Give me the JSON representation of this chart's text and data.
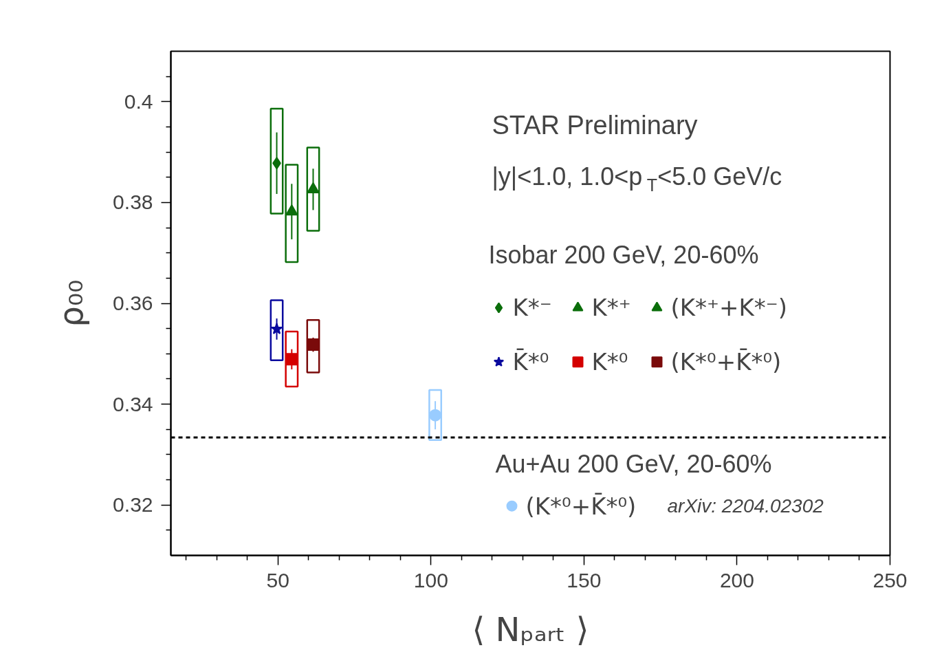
{
  "chart_data": {
    "type": "scatter",
    "xlabel": "⟨ Nₚₐᵣₜ ⟩",
    "ylabel": "ρ₀₀",
    "xlim": [
      15,
      250
    ],
    "ylim": [
      0.31,
      0.41
    ],
    "xticks": [
      {
        "value": 20,
        "label": null
      },
      {
        "value": 30,
        "label": null
      },
      {
        "value": 40,
        "label": null
      },
      50,
      {
        "value": 60,
        "label": null
      },
      {
        "value": 70,
        "label": null
      },
      {
        "value": 80,
        "label": null
      },
      {
        "value": 90,
        "label": null
      },
      100,
      {
        "value": 110,
        "label": null
      },
      {
        "value": 120,
        "label": null
      },
      {
        "value": 130,
        "label": null
      },
      {
        "value": 140,
        "label": null
      },
      150,
      {
        "value": 160,
        "label": null
      },
      {
        "value": 170,
        "label": null
      },
      {
        "value": 180,
        "label": null
      },
      {
        "value": 190,
        "label": null
      },
      200,
      {
        "value": 210,
        "label": null
      },
      {
        "value": 220,
        "label": null
      },
      {
        "value": 230,
        "label": null
      },
      {
        "value": 240,
        "label": null
      },
      250
    ],
    "yticks": [
      {
        "value": 0.315,
        "label": null
      },
      0.32,
      {
        "value": 0.325,
        "label": null
      },
      {
        "value": 0.33,
        "label": null
      },
      {
        "value": 0.335,
        "label": null
      },
      0.34,
      {
        "value": 0.345,
        "label": null
      },
      {
        "value": 0.35,
        "label": null
      },
      {
        "value": 0.355,
        "label": null
      },
      0.36,
      {
        "value": 0.365,
        "label": null
      },
      {
        "value": 0.37,
        "label": null
      },
      {
        "value": 0.375,
        "label": null
      },
      0.38,
      {
        "value": 0.385,
        "label": null
      },
      {
        "value": 0.39,
        "label": null
      },
      {
        "value": 0.395,
        "label": null
      },
      0.4,
      {
        "value": 0.405,
        "label": null
      }
    ],
    "grid": false,
    "legend": "right",
    "annotations": [
      "STAR Preliminary",
      "|y|<1.0, 1.0<p$_{T}$<5.0 GeV/c",
      "Isobar 200 GeV, 20-60%",
      "Au+Au 200 GeV, 20-60%",
      "arXiv: 2204.02302"
    ],
    "ref_lines": [
      {
        "axis": "y",
        "value": 0.3334,
        "color": "#000000",
        "line_style": "dashed"
      }
    ],
    "series": [
      {
        "type": "bar",
        "color": "#0b6e0b",
        "x": [
          49.6
        ],
        "base": [
          0.3778
        ],
        "values": [
          0.0208
        ]
      },
      {
        "type": "bar",
        "color": "#0b6e0b",
        "x": [
          54.5
        ],
        "base": [
          0.3682
        ],
        "values": [
          0.0193
        ]
      },
      {
        "type": "bar",
        "color": "#0b6e0b",
        "x": [
          61.5
        ],
        "base": [
          0.3744
        ],
        "values": [
          0.0165
        ]
      },
      {
        "type": "bar",
        "color": "#0a0a9e",
        "x": [
          49.6
        ],
        "base": [
          0.3487
        ],
        "values": [
          0.0119
        ]
      },
      {
        "type": "bar",
        "color": "#d40000",
        "x": [
          54.5
        ],
        "base": [
          0.3435
        ],
        "values": [
          0.0109
        ]
      },
      {
        "type": "bar",
        "color": "#7a0a0a",
        "x": [
          61.5
        ],
        "base": [
          0.3463
        ],
        "values": [
          0.0104
        ]
      },
      {
        "type": "bar",
        "color": "#99ccff",
        "x": [
          101.4
        ],
        "base": [
          0.3329
        ],
        "values": [
          0.0099
        ]
      },
      {
        "type": "scatter",
        "name": "K*⁻",
        "color": "#0b6e0b",
        "marker": "diamond",
        "x": [
          49.6
        ],
        "values": [
          0.3878
        ],
        "errors": [
          0.0061
        ]
      },
      {
        "type": "scatter",
        "name": "K*⁺",
        "color": "#0b6e0b",
        "marker": "triangle",
        "x": [
          54.5
        ],
        "values": [
          0.3782
        ],
        "errors": [
          0.0055
        ]
      },
      {
        "type": "scatter",
        "name": "(K*⁺+K*⁻)",
        "color": "#0b6e0b",
        "marker": "triangle",
        "x": [
          61.5
        ],
        "values": [
          0.3826
        ],
        "errors": [
          0.0041
        ]
      },
      {
        "type": "scatter",
        "name": "K̄*⁰",
        "color": "#0a0a9e",
        "marker": "star",
        "x": [
          49.6
        ],
        "values": [
          0.3549
        ],
        "errors": [
          0.0021
        ]
      },
      {
        "type": "scatter",
        "name": "K*⁰",
        "color": "#d40000",
        "marker": "square",
        "x": [
          54.5
        ],
        "values": [
          0.3489
        ],
        "errors": [
          0.002
        ]
      },
      {
        "type": "scatter",
        "name": "(K*⁰+K̄*⁰)",
        "color": "#7a0a0a",
        "marker": "square",
        "x": [
          61.5
        ],
        "values": [
          0.3518
        ],
        "errors": [
          0.0014
        ]
      },
      {
        "type": "scatter",
        "name": "(K*⁰+K̄*⁰)",
        "color": "#99ccff",
        "marker": "circle",
        "x": [
          101.4
        ],
        "values": [
          0.3378
        ],
        "errors": [
          0.0028
        ]
      }
    ]
  }
}
